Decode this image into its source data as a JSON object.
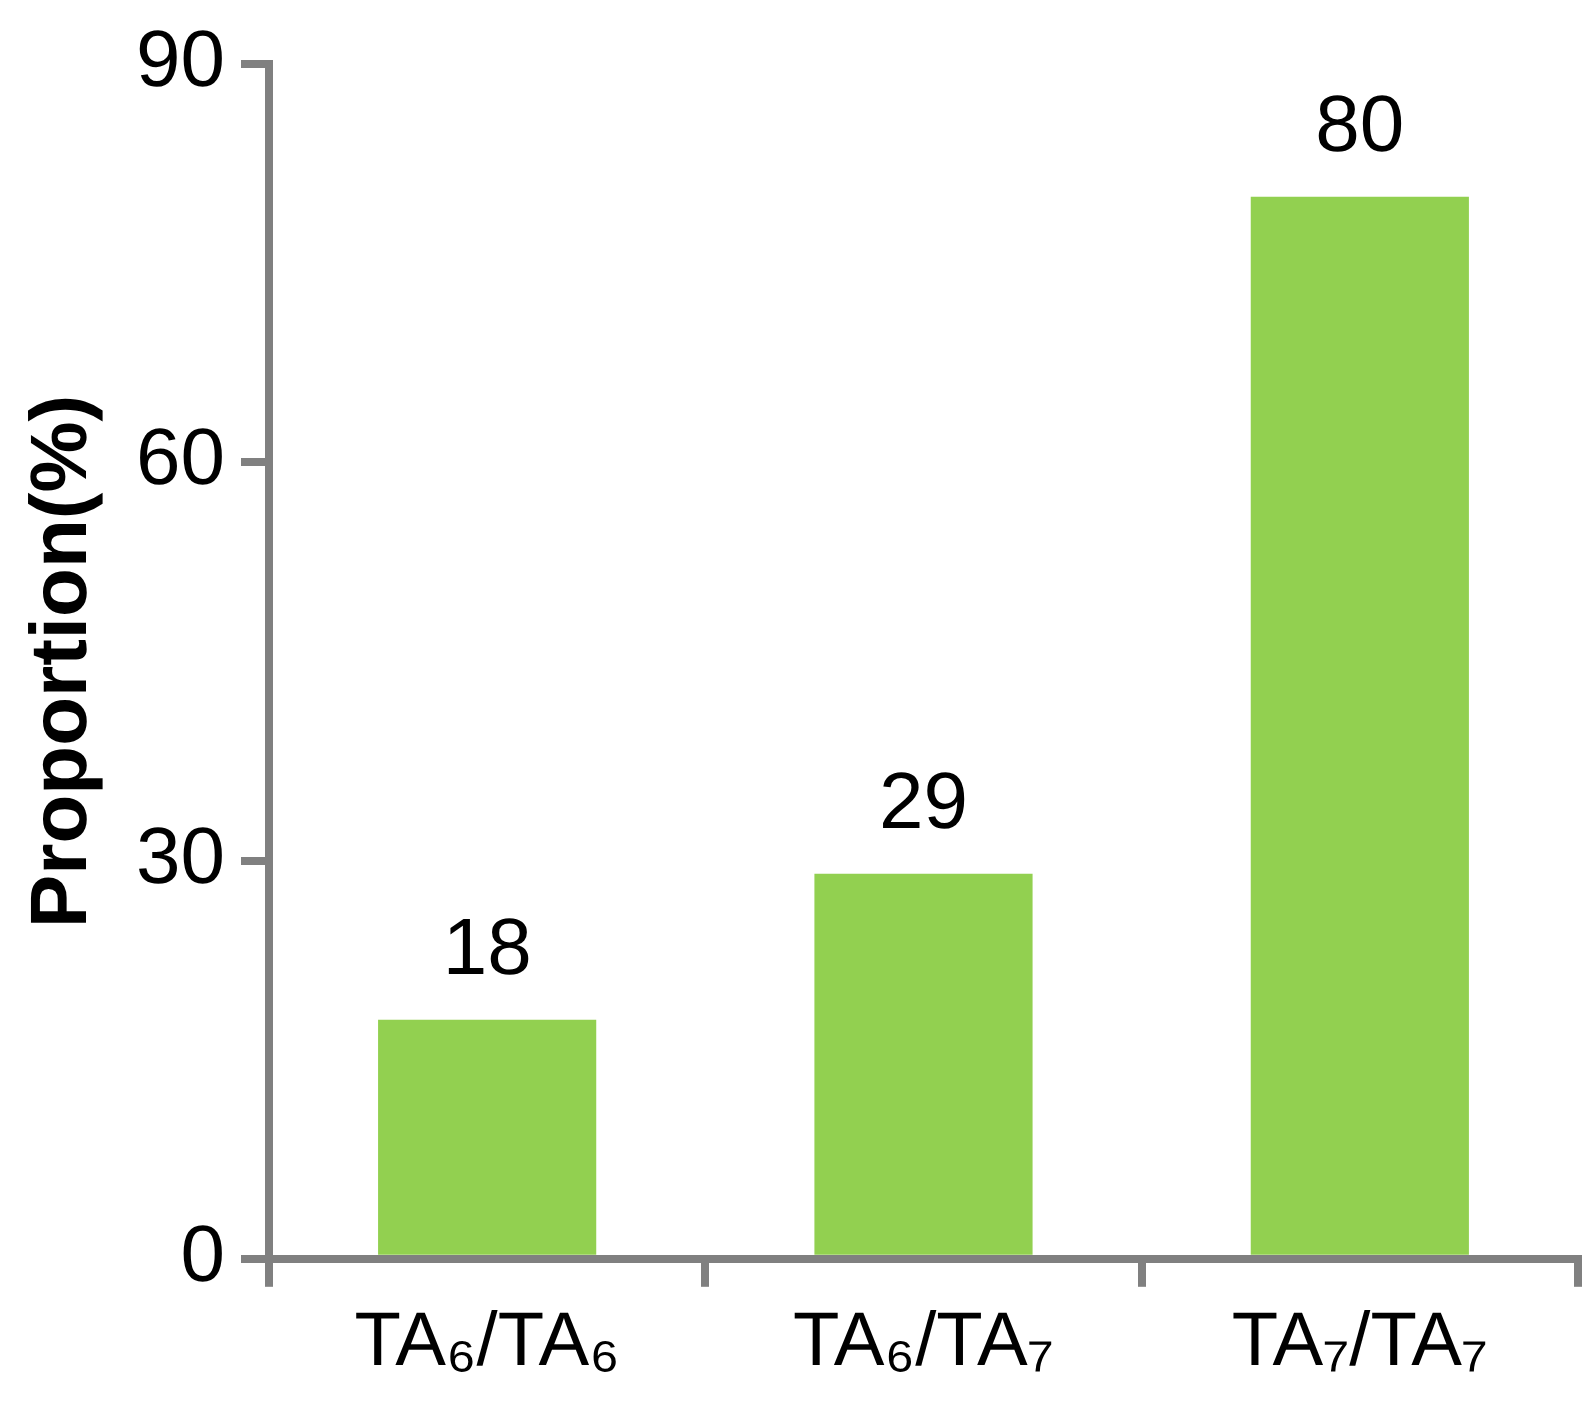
{
  "chart_data": {
    "type": "bar",
    "ylabel": "Proportion(%)",
    "categories": [
      "TA₆/TA₆",
      "TA₆/TA₇",
      "TA₇/TA₇"
    ],
    "values": [
      18,
      29,
      80
    ],
    "color": "#92d050",
    "ylim": [
      0,
      90
    ],
    "yticks": [
      0,
      30,
      60,
      90
    ],
    "grid": false,
    "legend": false,
    "data_labels": true
  }
}
